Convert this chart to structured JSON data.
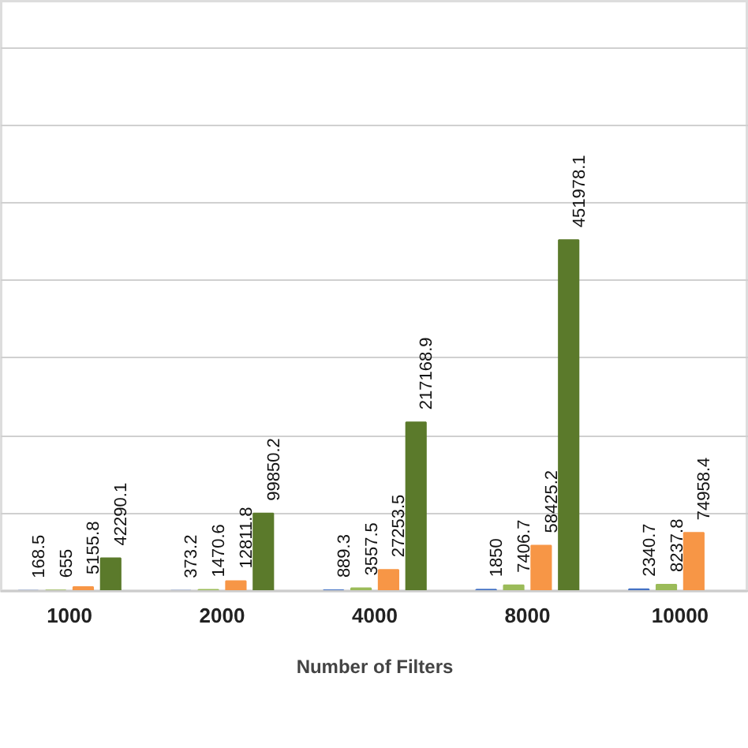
{
  "chart_data": {
    "type": "bar",
    "xlabel": "Number of Filters",
    "categories": [
      "1000",
      "2000",
      "4000",
      "8000",
      "10000"
    ],
    "series": [
      {
        "color": "#4472c4",
        "values": [
          168.5,
          373.2,
          889.3,
          1850,
          2340.7
        ]
      },
      {
        "color": "#9bbb59",
        "values": [
          655,
          1470.6,
          3557.5,
          7406.7,
          8237.8
        ]
      },
      {
        "color": "#f79646",
        "values": [
          5155.8,
          12811.8,
          27253.5,
          58425.2,
          74958.4
        ]
      },
      {
        "color": "#5b7a2b",
        "values": [
          42290.1,
          99850.2,
          217168.9,
          451978.1,
          null
        ]
      }
    ],
    "data_labels": true,
    "ylim": [
      0,
      760000
    ],
    "yticks": [
      {
        "value": 0,
        "label": null
      },
      {
        "value": 100000,
        "label": null
      },
      {
        "value": 200000,
        "label": null
      },
      {
        "value": 300000,
        "label": null
      },
      {
        "value": 400000,
        "label": null
      },
      {
        "value": 500000,
        "label": null
      },
      {
        "value": 600000,
        "label": null
      },
      {
        "value": 700000,
        "label": null
      }
    ],
    "grid": "y",
    "tick_labels": "x"
  }
}
